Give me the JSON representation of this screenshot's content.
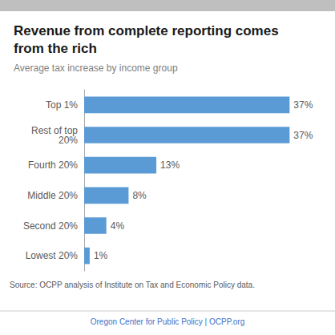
{
  "chart_data": {
    "type": "bar",
    "orientation": "horizontal",
    "title": "Revenue from complete reporting comes\nfrom the rich",
    "subtitle": "Average tax increase by income group",
    "categories": [
      "Lowest 20%",
      "Second 20%",
      "Middle 20%",
      "Fourth 20%",
      "Rest of top\n20%",
      "Top 1%"
    ],
    "values": [
      1,
      4,
      8,
      13,
      37,
      37
    ],
    "value_labels": [
      "1%",
      "4%",
      "8%",
      "13%",
      "37%",
      "37%"
    ],
    "data_labels": true,
    "color": "#5B9BD5",
    "xlim": [
      0,
      42
    ],
    "grid": false,
    "tick_labels": "y",
    "annotations": [
      "Source: OCPP analysis of Institute on Tax and Economic Policy data.",
      "Oregon Center for Public Policy | OCPP.org"
    ]
  }
}
